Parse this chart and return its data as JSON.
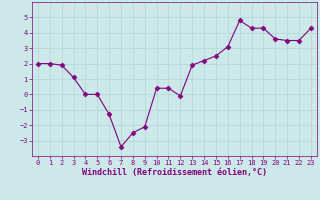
{
  "x": [
    0,
    1,
    2,
    3,
    4,
    5,
    6,
    7,
    8,
    9,
    10,
    11,
    12,
    13,
    14,
    15,
    16,
    17,
    18,
    19,
    20,
    21,
    22,
    23
  ],
  "y": [
    2.0,
    2.0,
    1.9,
    1.1,
    0.0,
    0.0,
    -1.3,
    -3.4,
    -2.5,
    -2.1,
    0.4,
    0.4,
    -0.1,
    1.9,
    2.2,
    2.5,
    3.1,
    4.8,
    4.3,
    4.3,
    3.6,
    3.5,
    3.5,
    4.3
  ],
  "line_color": "#800080",
  "marker": "D",
  "marker_size": 2.5,
  "bg_color": "#cce8e8",
  "grid_color": "#b0d8d8",
  "xlabel": "Windchill (Refroidissement éolien,°C)",
  "xlabel_color": "#800080",
  "ylim": [
    -4,
    6
  ],
  "xlim": [
    -0.5,
    23.5
  ],
  "yticks": [
    -3,
    -2,
    -1,
    0,
    1,
    2,
    3,
    4,
    5
  ],
  "xticks": [
    0,
    1,
    2,
    3,
    4,
    5,
    6,
    7,
    8,
    9,
    10,
    11,
    12,
    13,
    14,
    15,
    16,
    17,
    18,
    19,
    20,
    21,
    22,
    23
  ],
  "tick_color": "#800080",
  "tick_fontsize": 5,
  "xlabel_fontsize": 6
}
